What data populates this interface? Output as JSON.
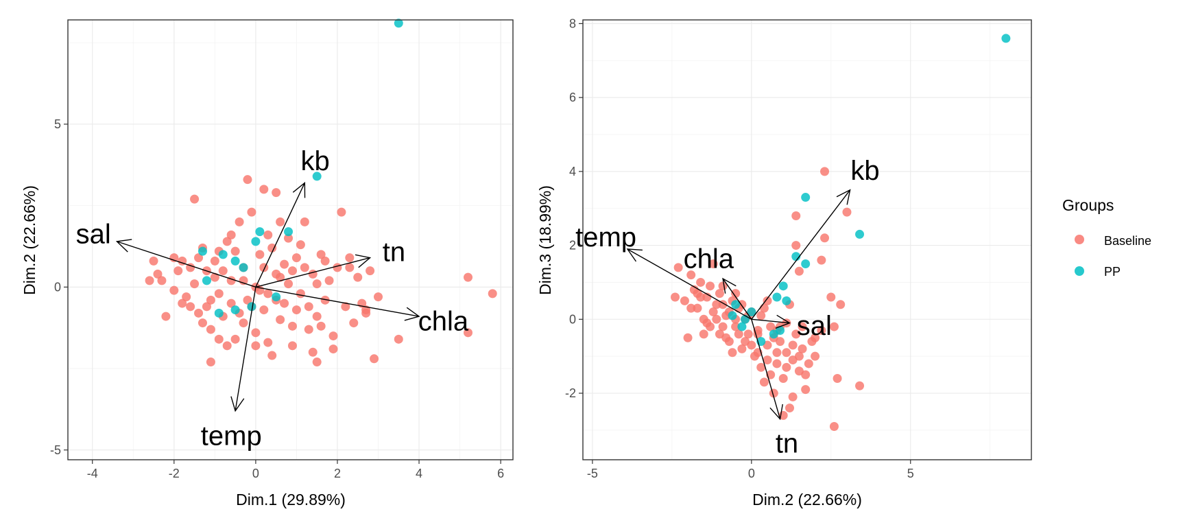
{
  "legend": {
    "title": "Groups",
    "entries": [
      {
        "label": "Baseline",
        "color": "#F8766D"
      },
      {
        "label": "PP",
        "color": "#00BFC4"
      }
    ]
  },
  "chart_data": [
    {
      "type": "scatter",
      "xlabel": "Dim.1 (29.89%)",
      "ylabel": "Dim.2 (22.66%)",
      "xlim": [
        -4.6,
        6.3
      ],
      "ylim": [
        -5.3,
        8.2
      ],
      "xticks": [
        -4,
        -2,
        0,
        2,
        4,
        6
      ],
      "yticks": [
        -5,
        0,
        5
      ],
      "grid": true,
      "legend_placement": "right",
      "series": [
        {
          "name": "Baseline",
          "color": "#F8766D",
          "points": [
            [
              -2.5,
              0.8
            ],
            [
              -2.4,
              0.4
            ],
            [
              -2.3,
              0.2
            ],
            [
              -2.6,
              0.2
            ],
            [
              -2.2,
              -0.9
            ],
            [
              -2.0,
              -0.1
            ],
            [
              -1.9,
              0.5
            ],
            [
              -1.8,
              0.8
            ],
            [
              -1.7,
              -0.3
            ],
            [
              -1.6,
              0.6
            ],
            [
              -1.5,
              2.7
            ],
            [
              -1.4,
              0.9
            ],
            [
              -1.3,
              1.2
            ],
            [
              -1.2,
              -0.6
            ],
            [
              -1.1,
              -1.3
            ],
            [
              -1.0,
              0.3
            ],
            [
              -0.9,
              -0.2
            ],
            [
              -0.8,
              -0.9
            ],
            [
              -0.7,
              1.4
            ],
            [
              -0.6,
              0.2
            ],
            [
              -0.5,
              -1.6
            ],
            [
              -0.4,
              2.0
            ],
            [
              -0.3,
              0.6
            ],
            [
              -0.2,
              -0.4
            ],
            [
              -0.1,
              2.3
            ],
            [
              0.0,
              0.0
            ],
            [
              0.1,
              1.0
            ],
            [
              0.2,
              -0.7
            ],
            [
              0.3,
              1.6
            ],
            [
              0.4,
              -2.1
            ],
            [
              0.5,
              0.4
            ],
            [
              0.6,
              2.0
            ],
            [
              0.7,
              -0.5
            ],
            [
              0.8,
              1.5
            ],
            [
              0.9,
              -1.2
            ],
            [
              1.0,
              0.9
            ],
            [
              1.1,
              -0.2
            ],
            [
              1.2,
              2.0
            ],
            [
              1.3,
              -1.3
            ],
            [
              1.4,
              0.4
            ],
            [
              1.5,
              -0.9
            ],
            [
              1.6,
              1.0
            ],
            [
              1.7,
              -0.4
            ],
            [
              1.8,
              0.2
            ],
            [
              1.9,
              -1.5
            ],
            [
              2.0,
              0.6
            ],
            [
              2.1,
              2.3
            ],
            [
              2.2,
              -0.6
            ],
            [
              2.3,
              0.9
            ],
            [
              2.4,
              -1.1
            ],
            [
              2.5,
              0.3
            ],
            [
              2.6,
              -0.5
            ],
            [
              2.7,
              -0.8
            ],
            [
              2.8,
              0.5
            ],
            [
              2.9,
              -2.2
            ],
            [
              3.0,
              -0.3
            ],
            [
              3.5,
              -1.6
            ],
            [
              5.2,
              -1.4
            ],
            [
              5.2,
              0.3
            ],
            [
              5.8,
              -0.2
            ],
            [
              -1.2,
              0.5
            ],
            [
              -0.9,
              1.1
            ],
            [
              -0.6,
              -0.5
            ],
            [
              -0.3,
              -1.1
            ],
            [
              0.2,
              0.6
            ],
            [
              0.4,
              1.2
            ],
            [
              0.6,
              -1.0
            ],
            [
              0.8,
              0.1
            ],
            [
              1.1,
              1.3
            ],
            [
              1.3,
              -0.6
            ],
            [
              -1.8,
              -0.5
            ],
            [
              -1.5,
              0.1
            ],
            [
              -1.1,
              -0.4
            ],
            [
              -0.8,
              0.5
            ],
            [
              -0.4,
              -0.8
            ],
            [
              0.0,
              -1.4
            ],
            [
              0.3,
              -0.2
            ],
            [
              0.7,
              0.7
            ],
            [
              1.0,
              -0.7
            ],
            [
              1.5,
              0.1
            ],
            [
              -0.2,
              3.3
            ],
            [
              0.2,
              3.0
            ],
            [
              0.5,
              2.9
            ],
            [
              -0.7,
              -1.8
            ],
            [
              0.0,
              -1.8
            ],
            [
              0.3,
              -1.7
            ],
            [
              1.4,
              -2.0
            ],
            [
              1.5,
              -2.3
            ],
            [
              1.9,
              -1.9
            ],
            [
              -1.3,
              -1.1
            ],
            [
              -1.6,
              -0.6
            ],
            [
              -1.0,
              0.8
            ],
            [
              -0.5,
              1.1
            ],
            [
              -0.1,
              -0.6
            ],
            [
              0.5,
              -0.4
            ],
            [
              0.9,
              0.5
            ],
            [
              1.2,
              0.6
            ],
            [
              1.6,
              -1.2
            ],
            [
              2.3,
              0.6
            ],
            [
              -0.9,
              -1.6
            ],
            [
              -2.0,
              0.9
            ],
            [
              -1.4,
              -0.8
            ],
            [
              -0.3,
              0.2
            ],
            [
              0.1,
              -0.1
            ],
            [
              0.6,
              0.3
            ],
            [
              1.7,
              0.8
            ],
            [
              2.7,
              -0.7
            ],
            [
              -1.1,
              -2.3
            ],
            [
              -0.6,
              1.6
            ],
            [
              0.9,
              -1.8
            ]
          ]
        },
        {
          "name": "PP",
          "color": "#00BFC4",
          "points": [
            [
              3.5,
              8.1
            ],
            [
              1.5,
              3.4
            ],
            [
              -1.3,
              1.1
            ],
            [
              -0.8,
              1.0
            ],
            [
              -0.5,
              0.8
            ],
            [
              0.0,
              1.4
            ],
            [
              0.1,
              1.7
            ],
            [
              0.8,
              1.7
            ],
            [
              -0.3,
              0.6
            ],
            [
              -1.2,
              0.2
            ],
            [
              -0.5,
              -0.7
            ],
            [
              -0.9,
              -0.8
            ],
            [
              0.5,
              -0.3
            ],
            [
              -0.1,
              -0.6
            ]
          ]
        }
      ],
      "arrows": [
        {
          "label": "sal",
          "x": -3.4,
          "y": 1.4
        },
        {
          "label": "kb",
          "x": 1.2,
          "y": 3.2
        },
        {
          "label": "tn",
          "x": 2.8,
          "y": 0.9
        },
        {
          "label": "chla",
          "x": 4.0,
          "y": -0.9
        },
        {
          "label": "temp",
          "x": -0.5,
          "y": -3.8
        }
      ]
    },
    {
      "type": "scatter",
      "xlabel": "Dim.2 (22.66%)",
      "ylabel": "Dim.3 (18.99%)",
      "xlim": [
        -5.3,
        8.8
      ],
      "ylim": [
        -3.8,
        8.1
      ],
      "xticks": [
        -5,
        0,
        5
      ],
      "yticks": [
        -2,
        0,
        2,
        4,
        6,
        8
      ],
      "grid": true,
      "legend_placement": "right",
      "series": [
        {
          "name": "Baseline",
          "color": "#F8766D",
          "points": [
            [
              -2.3,
              1.4
            ],
            [
              -2.1,
              0.5
            ],
            [
              -1.9,
              1.2
            ],
            [
              -1.8,
              0.8
            ],
            [
              -1.7,
              0.3
            ],
            [
              -1.6,
              1.0
            ],
            [
              -1.5,
              0.0
            ],
            [
              -1.4,
              0.6
            ],
            [
              -1.3,
              -0.2
            ],
            [
              -1.2,
              1.5
            ],
            [
              -1.1,
              0.4
            ],
            [
              -1.0,
              -0.4
            ],
            [
              -0.9,
              0.9
            ],
            [
              -0.8,
              0.1
            ],
            [
              -0.7,
              -0.6
            ],
            [
              -0.6,
              0.5
            ],
            [
              -0.5,
              -0.2
            ],
            [
              -0.4,
              0.3
            ],
            [
              -0.3,
              -0.8
            ],
            [
              -0.2,
              0.0
            ],
            [
              -0.1,
              -0.4
            ],
            [
              0.0,
              0.2
            ],
            [
              0.1,
              -1.0
            ],
            [
              0.2,
              -0.3
            ],
            [
              0.3,
              -1.3
            ],
            [
              0.4,
              0.3
            ],
            [
              0.5,
              -0.7
            ],
            [
              0.6,
              -1.5
            ],
            [
              0.7,
              -0.5
            ],
            [
              0.8,
              -1.2
            ],
            [
              0.9,
              -0.2
            ],
            [
              1.0,
              -1.6
            ],
            [
              1.1,
              -0.9
            ],
            [
              1.2,
              -2.4
            ],
            [
              1.3,
              -1.1
            ],
            [
              1.4,
              -0.4
            ],
            [
              1.5,
              -1.4
            ],
            [
              1.6,
              -0.8
            ],
            [
              1.7,
              -1.9
            ],
            [
              1.8,
              -1.2
            ],
            [
              1.9,
              -0.6
            ],
            [
              2.0,
              -1.0
            ],
            [
              2.2,
              -0.3
            ],
            [
              2.3,
              4.0
            ],
            [
              2.6,
              -2.9
            ],
            [
              2.7,
              -1.6
            ],
            [
              2.8,
              0.4
            ],
            [
              3.0,
              2.9
            ],
            [
              3.4,
              -1.8
            ],
            [
              1.4,
              2.8
            ],
            [
              1.4,
              2.0
            ],
            [
              1.5,
              1.3
            ],
            [
              2.2,
              1.6
            ],
            [
              2.3,
              2.2
            ],
            [
              2.6,
              -0.2
            ],
            [
              -1.9,
              0.3
            ],
            [
              -1.3,
              0.9
            ],
            [
              -0.8,
              -0.5
            ],
            [
              -0.5,
              0.7
            ],
            [
              -0.2,
              -0.6
            ],
            [
              0.3,
              0.1
            ],
            [
              0.6,
              -0.2
            ],
            [
              0.8,
              -0.9
            ],
            [
              1.1,
              -0.1
            ],
            [
              1.3,
              -0.7
            ],
            [
              1.6,
              -0.2
            ],
            [
              2.0,
              -0.5
            ],
            [
              -1.6,
              0.6
            ],
            [
              -1.1,
              0.0
            ],
            [
              -0.7,
              0.2
            ],
            [
              -0.4,
              -0.4
            ],
            [
              0.0,
              -0.7
            ],
            [
              0.4,
              -1.7
            ],
            [
              0.7,
              -2.0
            ],
            [
              1.0,
              -2.6
            ],
            [
              1.3,
              -2.1
            ],
            [
              -2.4,
              0.6
            ],
            [
              -2.0,
              -0.5
            ],
            [
              -1.5,
              -0.4
            ],
            [
              -1.0,
              0.7
            ],
            [
              -0.6,
              -0.9
            ],
            [
              -0.3,
              0.4
            ],
            [
              0.2,
              -0.9
            ],
            [
              0.5,
              0.5
            ],
            [
              0.9,
              -0.6
            ],
            [
              1.2,
              0.4
            ],
            [
              1.7,
              -1.5
            ],
            [
              2.5,
              0.6
            ],
            [
              -1.2,
              0.2
            ],
            [
              -0.9,
              -0.2
            ],
            [
              -0.1,
              0.1
            ],
            [
              0.2,
              -0.4
            ],
            [
              0.5,
              -1.1
            ],
            [
              0.8,
              -0.3
            ],
            [
              1.1,
              -1.3
            ],
            [
              1.5,
              -1.0
            ],
            [
              -1.7,
              0.7
            ],
            [
              -1.4,
              -0.1
            ],
            [
              -0.9,
              0.4
            ],
            [
              -0.5,
              0.0
            ]
          ]
        },
        {
          "name": "PP",
          "color": "#00BFC4",
          "points": [
            [
              8.0,
              7.6
            ],
            [
              1.7,
              3.3
            ],
            [
              3.4,
              2.3
            ],
            [
              1.4,
              1.7
            ],
            [
              1.7,
              1.5
            ],
            [
              1.0,
              0.9
            ],
            [
              1.1,
              0.5
            ],
            [
              0.8,
              0.6
            ],
            [
              0.0,
              0.2
            ],
            [
              -0.5,
              0.4
            ],
            [
              -0.6,
              0.1
            ],
            [
              -0.3,
              -0.2
            ],
            [
              0.3,
              -0.6
            ],
            [
              0.9,
              -0.3
            ],
            [
              0.7,
              -0.4
            ],
            [
              -0.2,
              0.0
            ]
          ]
        }
      ],
      "arrows": [
        {
          "label": "kb",
          "x": 3.1,
          "y": 3.5
        },
        {
          "label": "temp",
          "x": -3.9,
          "y": 1.9
        },
        {
          "label": "chla",
          "x": -0.9,
          "y": 1.1
        },
        {
          "label": "sal",
          "x": 1.2,
          "y": -0.1
        },
        {
          "label": "tn",
          "x": 0.9,
          "y": -2.7
        }
      ]
    }
  ]
}
